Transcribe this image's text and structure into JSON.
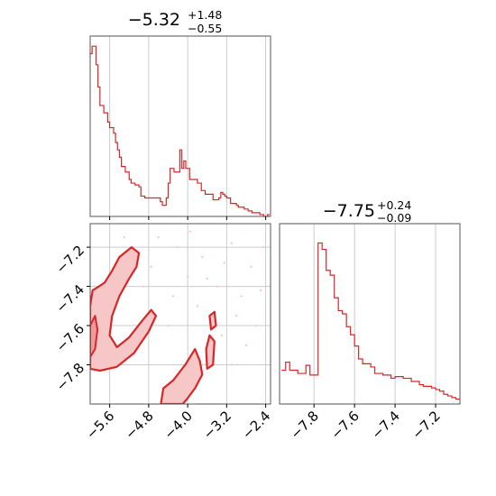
{
  "colors": {
    "series": "#d62728",
    "fill_light": "#f7c6c7",
    "fill_mid": "#ef9a9b",
    "grid": "#cccccc",
    "axis": "#555555"
  },
  "chart_data": [
    {
      "type": "histogram",
      "panel": "top-left",
      "title": {
        "main": "−5.32",
        "plus": "+1.48",
        "minus": "−0.55"
      },
      "xlim": [
        -6.0,
        -2.3
      ],
      "grid_x": [
        -5.6,
        -4.8,
        -4.0,
        -3.2,
        -2.4
      ],
      "bin_centers": [
        -5.98,
        -5.94,
        -5.9,
        -5.86,
        -5.82,
        -5.78,
        -5.74,
        -5.7,
        -5.66,
        -5.62,
        -5.58,
        -5.54,
        -5.5,
        -5.46,
        -5.42,
        -5.38,
        -5.34,
        -5.3,
        -5.26,
        -5.22,
        -5.18,
        -5.14,
        -5.1,
        -5.06,
        -5.02,
        -4.98,
        -4.94,
        -4.9,
        -4.86,
        -4.82,
        -4.78,
        -4.74,
        -4.7,
        -4.66,
        -4.62,
        -4.58,
        -4.54,
        -4.5,
        -4.46,
        -4.42,
        -4.38,
        -4.34,
        -4.3,
        -4.26,
        -4.22,
        -4.18,
        -4.14,
        -4.1,
        -4.06,
        -4.02,
        -3.98,
        -3.94,
        -3.9,
        -3.86,
        -3.82,
        -3.78,
        -3.74,
        -3.7,
        -3.66,
        -3.62,
        -3.58,
        -3.54,
        -3.5,
        -3.46,
        -3.42,
        -3.38,
        -3.34,
        -3.3,
        -3.26,
        -3.22,
        -3.18,
        -3.14,
        -3.1,
        -3.06,
        -3.02,
        -2.98,
        -2.94,
        -2.9,
        -2.86,
        -2.82,
        -2.78,
        -2.74,
        -2.7,
        -2.66,
        -2.62,
        -2.58,
        -2.54,
        -2.5,
        -2.46,
        -2.42,
        -2.38,
        -2.34
      ],
      "counts": [
        88,
        92,
        92,
        82,
        70,
        60,
        60,
        56,
        56,
        51,
        48,
        48,
        45,
        40,
        36,
        32,
        27,
        27,
        24,
        24,
        20,
        18,
        18,
        17,
        17,
        16,
        11,
        11,
        10,
        10,
        10,
        10,
        10,
        10,
        10,
        10,
        8,
        6,
        6,
        10,
        18,
        26,
        26,
        24,
        24,
        24,
        36,
        26,
        30,
        26,
        26,
        20,
        20,
        20,
        20,
        18,
        18,
        14,
        14,
        12,
        12,
        12,
        12,
        9,
        9,
        9,
        10,
        13,
        12,
        11,
        10,
        10,
        7,
        7,
        7,
        6,
        5,
        5,
        5,
        4,
        4,
        3,
        3,
        2,
        2,
        2,
        2,
        1,
        1,
        0,
        0,
        1
      ]
    },
    {
      "type": "histogram",
      "panel": "bottom-right",
      "title": {
        "main": "−7.75",
        "plus": "+0.24",
        "minus": "−0.09"
      },
      "xlim": [
        -7.97,
        -7.08
      ],
      "xticks": [
        "−7.8",
        "−7.6",
        "−7.4",
        "−7.2"
      ],
      "xtick_values": [
        -7.8,
        -7.6,
        -7.4,
        -7.2
      ],
      "bin_centers": [
        -7.95,
        -7.93,
        -7.91,
        -7.89,
        -7.87,
        -7.85,
        -7.83,
        -7.81,
        -7.79,
        -7.77,
        -7.75,
        -7.73,
        -7.71,
        -7.69,
        -7.67,
        -7.65,
        -7.63,
        -7.61,
        -7.59,
        -7.57,
        -7.55,
        -7.53,
        -7.51,
        -7.49,
        -7.47,
        -7.45,
        -7.43,
        -7.41,
        -7.39,
        -7.37,
        -7.35,
        -7.33,
        -7.31,
        -7.29,
        -7.27,
        -7.25,
        -7.23,
        -7.21,
        -7.19,
        -7.17,
        -7.15,
        -7.13,
        -7.11,
        -7.09
      ],
      "counts": [
        21,
        26,
        21,
        21,
        19,
        19,
        24,
        18,
        18,
        100,
        96,
        83,
        80,
        66,
        58,
        56,
        48,
        43,
        36,
        28,
        25,
        25,
        23,
        19,
        19,
        18,
        18,
        16,
        17,
        17,
        16,
        16,
        14,
        14,
        12,
        11,
        11,
        10,
        9,
        8,
        6,
        5,
        4,
        3
      ]
    },
    {
      "type": "contour",
      "panel": "bottom-left",
      "xlim": [
        -6.0,
        -2.3
      ],
      "ylim": [
        -8.0,
        -7.08
      ],
      "xticks": [
        "−5.6",
        "−4.8",
        "−4.0",
        "−3.2",
        "−2.4"
      ],
      "xtick_values": [
        -5.6,
        -4.8,
        -4.0,
        -3.2,
        -2.4
      ],
      "yticks": [
        "−7.2",
        "−7.4",
        "−7.6",
        "−7.8"
      ],
      "ytick_values": [
        -7.2,
        -7.4,
        -7.6,
        -7.8
      ],
      "regions": [
        {
          "level": "outer",
          "points": [
            [
              -6.0,
              -7.5
            ],
            [
              -5.95,
              -7.42
            ],
            [
              -5.82,
              -7.4
            ],
            [
              -5.7,
              -7.38
            ],
            [
              -5.55,
              -7.32
            ],
            [
              -5.4,
              -7.25
            ],
            [
              -5.15,
              -7.2
            ],
            [
              -5.0,
              -7.23
            ],
            [
              -5.05,
              -7.3
            ],
            [
              -5.2,
              -7.36
            ],
            [
              -5.4,
              -7.45
            ],
            [
              -5.55,
              -7.55
            ],
            [
              -5.6,
              -7.65
            ],
            [
              -5.45,
              -7.71
            ],
            [
              -5.2,
              -7.66
            ],
            [
              -4.95,
              -7.58
            ],
            [
              -4.75,
              -7.52
            ],
            [
              -4.65,
              -7.55
            ],
            [
              -4.8,
              -7.63
            ],
            [
              -5.1,
              -7.74
            ],
            [
              -5.45,
              -7.81
            ],
            [
              -5.8,
              -7.83
            ],
            [
              -6.0,
              -7.82
            ]
          ]
        },
        {
          "level": "inner",
          "points": [
            [
              -6.0,
              -7.6
            ],
            [
              -5.9,
              -7.55
            ],
            [
              -5.85,
              -7.62
            ],
            [
              -5.9,
              -7.72
            ],
            [
              -6.0,
              -7.76
            ]
          ]
        },
        {
          "level": "outer",
          "points": [
            [
              -4.55,
              -8.0
            ],
            [
              -4.5,
              -7.92
            ],
            [
              -4.3,
              -7.88
            ],
            [
              -4.05,
              -7.8
            ],
            [
              -3.85,
              -7.72
            ],
            [
              -3.75,
              -7.78
            ],
            [
              -3.7,
              -7.85
            ],
            [
              -3.85,
              -7.92
            ],
            [
              -4.0,
              -7.97
            ],
            [
              -4.1,
              -8.0
            ]
          ]
        },
        {
          "level": "outer",
          "points": [
            [
              -3.62,
              -7.72
            ],
            [
              -3.55,
              -7.65
            ],
            [
              -3.45,
              -7.68
            ],
            [
              -3.48,
              -7.8
            ],
            [
              -3.6,
              -7.82
            ]
          ]
        },
        {
          "level": "outer",
          "points": [
            [
              -3.55,
              -7.55
            ],
            [
              -3.45,
              -7.53
            ],
            [
              -3.42,
              -7.6
            ],
            [
              -3.52,
              -7.62
            ]
          ]
        }
      ],
      "samples": [
        [
          -4.6,
          -7.15
        ],
        [
          -4.2,
          -7.2
        ],
        [
          -3.7,
          -7.25
        ],
        [
          -3.1,
          -7.18
        ],
        [
          -2.7,
          -7.3
        ],
        [
          -4.0,
          -7.35
        ],
        [
          -3.4,
          -7.4
        ],
        [
          -2.9,
          -7.45
        ],
        [
          -3.8,
          -7.5
        ],
        [
          -3.0,
          -7.55
        ],
        [
          -2.6,
          -7.6
        ],
        [
          -3.3,
          -7.65
        ],
        [
          -2.8,
          -7.7
        ],
        [
          -3.1,
          -7.8
        ],
        [
          -2.5,
          -7.42
        ],
        [
          -4.3,
          -7.45
        ],
        [
          -4.9,
          -7.4
        ],
        [
          -5.3,
          -7.15
        ],
        [
          -4.4,
          -7.6
        ],
        [
          -3.6,
          -7.36
        ],
        [
          -2.45,
          -7.2
        ],
        [
          -3.95,
          -7.12
        ],
        [
          -4.75,
          -7.3
        ],
        [
          -3.25,
          -7.28
        ]
      ]
    }
  ]
}
